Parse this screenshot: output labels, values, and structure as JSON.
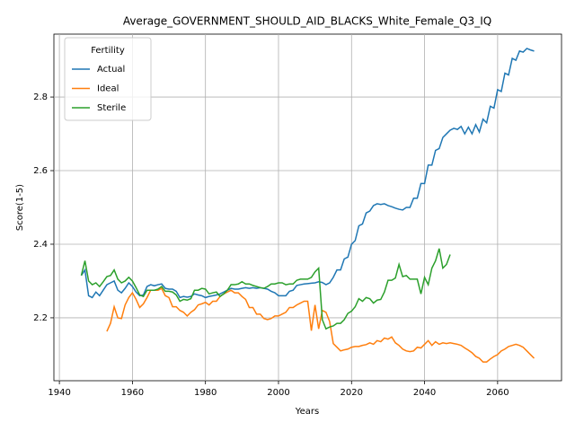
{
  "chart_data": {
    "type": "line",
    "title": "Average_GOVERNMENT_SHOULD_AID_BLACKS_White_Female_Q3_IQ",
    "xlabel": "Years",
    "ylabel": "Score(1-5)",
    "legend_title": "Fertility",
    "legend": "upper left",
    "grid": true,
    "xlim": [
      1938.5,
      2077.5
    ],
    "ylim": [
      2.029,
      2.971
    ],
    "xticks": [
      1940,
      1960,
      1980,
      2000,
      2020,
      2040,
      2060
    ],
    "yticks": [
      2.2,
      2.4,
      2.6,
      2.8
    ],
    "x": [
      1946,
      1947,
      1948,
      1949,
      1950,
      1951,
      1952,
      1953,
      1954,
      1955,
      1956,
      1957,
      1958,
      1959,
      1960,
      1961,
      1962,
      1963,
      1964,
      1965,
      1966,
      1967,
      1968,
      1969,
      1970,
      1971,
      1972,
      1973,
      1974,
      1975,
      1976,
      1977,
      1978,
      1979,
      1980,
      1981,
      1982,
      1983,
      1984,
      1985,
      1986,
      1987,
      1988,
      1989,
      1990,
      1991,
      1992,
      1993,
      1994,
      1995,
      1996,
      1997,
      1998,
      1999,
      2000,
      2001,
      2002,
      2003,
      2004,
      2005,
      2006,
      2007,
      2008,
      2009,
      2010,
      2011,
      2012,
      2013,
      2014,
      2015,
      2016,
      2017,
      2018,
      2019,
      2020,
      2021,
      2022,
      2023,
      2024,
      2025,
      2026,
      2027,
      2028,
      2029,
      2030,
      2031,
      2032,
      2033,
      2034,
      2035,
      2036,
      2037,
      2038,
      2039,
      2040,
      2041,
      2042,
      2043,
      2044,
      2045,
      2046,
      2047,
      2048,
      2049,
      2050,
      2051,
      2052,
      2053,
      2054,
      2055,
      2056,
      2057,
      2058,
      2059,
      2060,
      2061,
      2062,
      2063,
      2064,
      2065,
      2066,
      2067,
      2068,
      2069,
      2070
    ],
    "series": [
      {
        "name": "Actual",
        "color": "#1f77b4",
        "values": [
          2.315,
          2.33,
          2.26,
          2.255,
          2.27,
          2.26,
          2.275,
          2.29,
          2.295,
          2.3,
          2.275,
          2.268,
          2.28,
          2.295,
          2.285,
          2.27,
          2.26,
          2.262,
          2.285,
          2.29,
          2.287,
          2.29,
          2.292,
          2.28,
          2.278,
          2.278,
          2.272,
          2.255,
          2.258,
          2.256,
          2.258,
          2.265,
          2.262,
          2.26,
          2.255,
          2.258,
          2.26,
          2.262,
          2.265,
          2.27,
          2.275,
          2.28,
          2.278,
          2.278,
          2.28,
          2.282,
          2.28,
          2.282,
          2.28,
          2.282,
          2.28,
          2.278,
          2.272,
          2.268,
          2.26,
          2.26,
          2.26,
          2.272,
          2.275,
          2.288,
          2.29,
          2.292,
          2.293,
          2.294,
          2.295,
          2.298,
          2.296,
          2.29,
          2.295,
          2.31,
          2.33,
          2.33,
          2.36,
          2.365,
          2.4,
          2.41,
          2.45,
          2.455,
          2.485,
          2.49,
          2.505,
          2.51,
          2.508,
          2.51,
          2.505,
          2.502,
          2.498,
          2.495,
          2.493,
          2.5,
          2.5,
          2.525,
          2.525,
          2.565,
          2.565,
          2.615,
          2.615,
          2.655,
          2.66,
          2.69,
          2.7,
          2.71,
          2.715,
          2.712,
          2.72,
          2.7,
          2.718,
          2.7,
          2.725,
          2.705,
          2.74,
          2.73,
          2.775,
          2.77,
          2.82,
          2.815,
          2.865,
          2.86,
          2.905,
          2.9,
          2.925,
          2.922,
          2.932,
          2.928,
          2.925
        ]
      },
      {
        "name": "Ideal",
        "color": "#ff7f0e",
        "values": [
          null,
          null,
          null,
          null,
          null,
          null,
          null,
          2.163,
          2.185,
          2.23,
          2.2,
          2.198,
          2.235,
          2.255,
          2.268,
          2.25,
          2.228,
          2.238,
          2.255,
          2.275,
          2.275,
          2.275,
          2.28,
          2.26,
          2.255,
          2.23,
          2.23,
          2.22,
          2.215,
          2.205,
          2.215,
          2.222,
          2.235,
          2.238,
          2.242,
          2.235,
          2.245,
          2.245,
          2.258,
          2.265,
          2.27,
          2.275,
          2.268,
          2.268,
          2.258,
          2.25,
          2.228,
          2.228,
          2.21,
          2.21,
          2.198,
          2.195,
          2.198,
          2.205,
          2.205,
          2.21,
          2.215,
          2.228,
          2.228,
          2.235,
          2.24,
          2.245,
          2.245,
          2.165,
          2.235,
          2.17,
          2.22,
          2.215,
          2.19,
          2.13,
          2.12,
          2.11,
          2.113,
          2.115,
          2.12,
          2.122,
          2.122,
          2.125,
          2.127,
          2.132,
          2.128,
          2.138,
          2.135,
          2.145,
          2.142,
          2.148,
          2.132,
          2.125,
          2.115,
          2.11,
          2.108,
          2.11,
          2.12,
          2.118,
          2.128,
          2.138,
          2.125,
          2.135,
          2.128,
          2.132,
          2.13,
          2.132,
          2.13,
          2.128,
          2.125,
          2.118,
          2.112,
          2.105,
          2.095,
          2.09,
          2.08,
          2.08,
          2.088,
          2.095,
          2.1,
          2.11,
          2.115,
          2.122,
          2.125,
          2.128,
          2.125,
          2.12,
          2.11,
          2.1,
          2.09
        ]
      },
      {
        "name": "Sterile",
        "color": "#2ca02c",
        "values": [
          2.315,
          2.355,
          2.3,
          2.29,
          2.295,
          2.285,
          2.298,
          2.312,
          2.315,
          2.33,
          2.305,
          2.295,
          2.3,
          2.31,
          2.3,
          2.282,
          2.262,
          2.258,
          2.275,
          2.275,
          2.275,
          2.278,
          2.285,
          2.272,
          2.272,
          2.27,
          2.262,
          2.245,
          2.25,
          2.248,
          2.252,
          2.275,
          2.275,
          2.28,
          2.278,
          2.265,
          2.268,
          2.27,
          2.258,
          2.265,
          2.275,
          2.29,
          2.29,
          2.292,
          2.298,
          2.292,
          2.292,
          2.288,
          2.285,
          2.282,
          2.28,
          2.285,
          2.292,
          2.292,
          2.295,
          2.295,
          2.29,
          2.292,
          2.292,
          2.302,
          2.305,
          2.305,
          2.305,
          2.31,
          2.325,
          2.335,
          2.195,
          2.17,
          2.175,
          2.178,
          2.185,
          2.185,
          2.195,
          2.212,
          2.218,
          2.23,
          2.252,
          2.245,
          2.255,
          2.252,
          2.24,
          2.248,
          2.25,
          2.27,
          2.302,
          2.302,
          2.308,
          2.345,
          2.312,
          2.315,
          2.305,
          2.305,
          2.305,
          2.265,
          2.31,
          2.29,
          2.335,
          2.355,
          2.388,
          2.335,
          2.345,
          2.372,
          null,
          null,
          null,
          null,
          null,
          null,
          null,
          null,
          null,
          null,
          null,
          null,
          null,
          null,
          null,
          null,
          null,
          null,
          null,
          null,
          null,
          null,
          null
        ]
      }
    ]
  }
}
